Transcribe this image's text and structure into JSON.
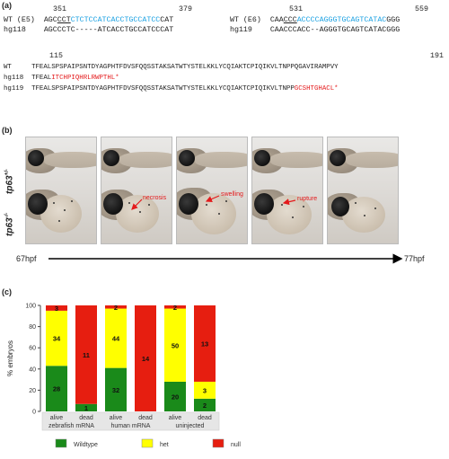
{
  "panel_a": {
    "label": "(a)",
    "left_block": {
      "num_start": "351",
      "num_end": "379",
      "wt_label": "WT (E5)",
      "wt_pre": "AGC",
      "wt_ul": "CCT",
      "wt_blue": "CTCTCCATCACCTGCCATCC",
      "wt_post": "CAT",
      "mut_label": "hg118",
      "mut_seq": "AGCCCTC-----ATCACCTGCCATCCCAT"
    },
    "right_block": {
      "num_start": "531",
      "num_end": "559",
      "wt_label": "WT (E6)",
      "wt_pre": "CAA",
      "wt_ul": "CCC",
      "wt_blue": "ACCCCAGGGTGCAGTCATAC",
      "wt_post": "GGG",
      "mut_label": "hg119",
      "mut_seq": "CAACCCACC--AGGGTGCAGTCATACGGG"
    },
    "protein": {
      "num_start": "115",
      "num_end": "191",
      "wt_label": "WT",
      "wt_seq": "TFEALSPSPAIPSNTDYAGPHTFDVSFQQSSTAKSATWTYSTELKKLYCQIAKTCPIQIKVLTNPPQGAVIRAMPVY",
      "m1_label": "hg118",
      "m1_black": "TFEAL",
      "m1_red": "ITCHPIQHRLRWPTHL*",
      "m2_label": "hg119",
      "m2_black": "TFEALSPSPAIPSNTDYAGPHTFDVSFQQSSTAKSATWTYSTELKKLYCQIAKTCPIQIKVLTNPP",
      "m2_red": "GCSHTGHACL*"
    }
  },
  "panel_b": {
    "label": "(b)",
    "row1_label": "tp63",
    "row1_sup": "+/-",
    "row2_label": "tp63",
    "row2_sup": "-/-",
    "annotations": [
      "necrosis",
      "swelling",
      "rupture"
    ],
    "time_start": "67hpf",
    "time_end": "77hpf"
  },
  "panel_c": {
    "label": "(c)"
  },
  "chart_data": {
    "type": "bar",
    "stacked": true,
    "ylabel": "% embryos",
    "ylim": [
      0,
      100
    ],
    "yticks": [
      "0",
      "20",
      "40",
      "60",
      "80",
      "100"
    ],
    "categories": [
      "alive",
      "dead",
      "alive",
      "dead",
      "alive",
      "dead"
    ],
    "groups": [
      "zebrafish mRNA",
      "human mRNA",
      "uninjected"
    ],
    "series": [
      {
        "name": "Wildtype",
        "color": "#1a8a1a",
        "values": [
          43,
          7,
          41,
          0,
          28,
          12
        ],
        "counts": [
          "28",
          "1",
          "32",
          "",
          "20",
          "2"
        ]
      },
      {
        "name": "het",
        "color": "#ffff00",
        "values": [
          52,
          0,
          56,
          0,
          69,
          16
        ],
        "counts": [
          "34",
          "",
          "44",
          "",
          "50",
          "3"
        ]
      },
      {
        "name": "null",
        "color": "#e61e10",
        "values": [
          5,
          93,
          3,
          100,
          3,
          72
        ],
        "counts": [
          "3",
          "11",
          "2",
          "14",
          "2",
          "13"
        ]
      }
    ],
    "legend_position": "bottom"
  }
}
